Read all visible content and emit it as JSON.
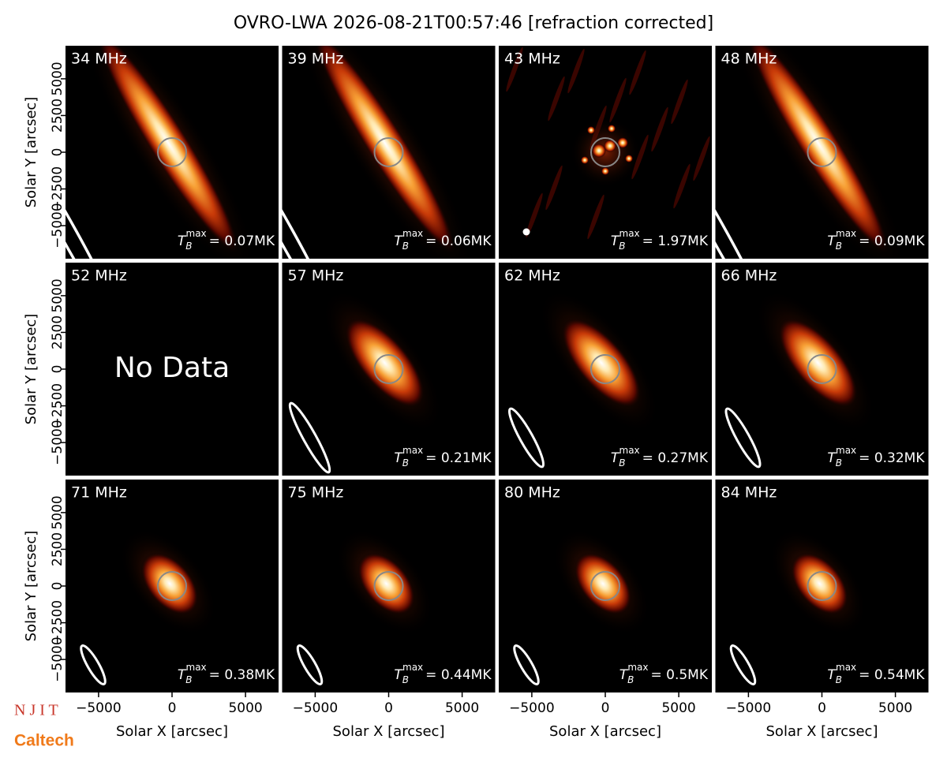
{
  "title": "OVRO-LWA 2026-08-21T00:57:46 [refraction corrected]",
  "logos": [
    "N J I T",
    "Caltech"
  ],
  "chart_data": [
    {
      "type": "image",
      "label": "34 MHz",
      "annotation": {
        "symbol": "T",
        "sub": "B",
        "sup": "max",
        "text": "= 0.07MK"
      },
      "xlim": [
        -7250,
        7250
      ],
      "ylim": [
        -7250,
        7250
      ],
      "ylabel": "Solar Y [arcsec]",
      "yticks": [
        {
          "value": -5000,
          "label": "−5000"
        },
        {
          "value": -2500,
          "label": "−2500"
        },
        0,
        2500,
        5000
      ]
    },
    {
      "type": "image",
      "label": "39 MHz",
      "annotation": {
        "symbol": "T",
        "sub": "B",
        "sup": "max",
        "text": "= 0.06MK"
      },
      "xlim": [
        -7250,
        7250
      ],
      "ylim": [
        -7250,
        7250
      ]
    },
    {
      "type": "image",
      "label": "43 MHz",
      "annotation": {
        "symbol": "T",
        "sub": "B",
        "sup": "max",
        "text": "= 1.97MK"
      },
      "xlim": [
        -7250,
        7250
      ],
      "ylim": [
        -7250,
        7250
      ]
    },
    {
      "type": "image",
      "label": "48 MHz",
      "annotation": {
        "symbol": "T",
        "sub": "B",
        "sup": "max",
        "text": "= 0.09MK"
      },
      "xlim": [
        -7250,
        7250
      ],
      "ylim": [
        -7250,
        7250
      ]
    },
    {
      "type": "image",
      "label": "52 MHz",
      "note": "No Data",
      "xlim": [
        -7250,
        7250
      ],
      "ylim": [
        -7250,
        7250
      ],
      "ylabel": "Solar Y [arcsec]",
      "yticks": [
        {
          "value": -5000,
          "label": "−5000"
        },
        {
          "value": -2500,
          "label": "−2500"
        },
        0,
        2500,
        5000
      ]
    },
    {
      "type": "image",
      "label": "57 MHz",
      "annotation": {
        "symbol": "T",
        "sub": "B",
        "sup": "max",
        "text": "= 0.21MK"
      },
      "xlim": [
        -7250,
        7250
      ],
      "ylim": [
        -7250,
        7250
      ]
    },
    {
      "type": "image",
      "label": "62 MHz",
      "annotation": {
        "symbol": "T",
        "sub": "B",
        "sup": "max",
        "text": "= 0.27MK"
      },
      "xlim": [
        -7250,
        7250
      ],
      "ylim": [
        -7250,
        7250
      ]
    },
    {
      "type": "image",
      "label": "66 MHz",
      "annotation": {
        "symbol": "T",
        "sub": "B",
        "sup": "max",
        "text": "= 0.32MK"
      },
      "xlim": [
        -7250,
        7250
      ],
      "ylim": [
        -7250,
        7250
      ]
    },
    {
      "type": "image",
      "label": "71 MHz",
      "annotation": {
        "symbol": "T",
        "sub": "B",
        "sup": "max",
        "text": "= 0.38MK"
      },
      "xlim": [
        -7250,
        7250
      ],
      "ylim": [
        -7250,
        7250
      ],
      "ylabel": "Solar Y [arcsec]",
      "yticks": [
        {
          "value": -5000,
          "label": "−5000"
        },
        {
          "value": -2500,
          "label": "−2500"
        },
        0,
        2500,
        5000
      ],
      "xlabel": "Solar X [arcsec]",
      "xticks": [
        {
          "value": -5000,
          "label": "−5000"
        },
        0,
        5000
      ]
    },
    {
      "type": "image",
      "label": "75 MHz",
      "annotation": {
        "symbol": "T",
        "sub": "B",
        "sup": "max",
        "text": "= 0.44MK"
      },
      "xlim": [
        -7250,
        7250
      ],
      "ylim": [
        -7250,
        7250
      ],
      "xlabel": "Solar X [arcsec]",
      "xticks": [
        {
          "value": -5000,
          "label": "−5000"
        },
        0,
        5000
      ]
    },
    {
      "type": "image",
      "label": "80 MHz",
      "annotation": {
        "symbol": "T",
        "sub": "B",
        "sup": "max",
        "text": "= 0.5MK"
      },
      "xlim": [
        -7250,
        7250
      ],
      "ylim": [
        -7250,
        7250
      ],
      "xlabel": "Solar X [arcsec]",
      "xticks": [
        {
          "value": -5000,
          "label": "−5000"
        },
        0,
        5000
      ]
    },
    {
      "type": "image",
      "label": "84 MHz",
      "annotation": {
        "symbol": "T",
        "sub": "B",
        "sup": "max",
        "text": "= 0.54MK"
      },
      "xlim": [
        -7250,
        7250
      ],
      "ylim": [
        -7250,
        7250
      ],
      "xlabel": "Solar X [arcsec]",
      "xticks": [
        {
          "value": -5000,
          "label": "−5000"
        },
        0,
        5000
      ]
    }
  ]
}
